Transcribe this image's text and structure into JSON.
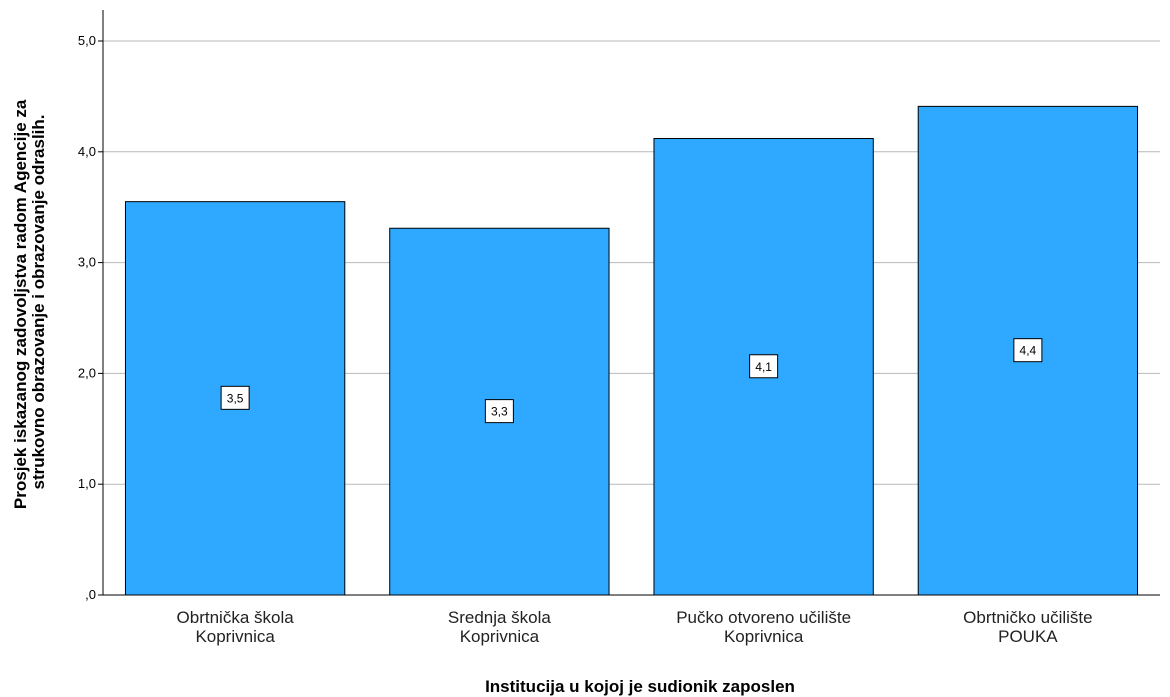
{
  "chart_data": {
    "type": "bar",
    "categories": [
      [
        "Obrtnička škola",
        "Koprivnica"
      ],
      [
        "Srednja škola",
        "Koprivnica"
      ],
      [
        "Pučko otvoreno učilište",
        "Koprivnica"
      ],
      [
        "Obrtničko učilište",
        "POUKA"
      ]
    ],
    "values": [
      3.55,
      3.31,
      4.12,
      4.41
    ],
    "data_labels": [
      "3,5",
      "3,3",
      "4,1",
      "4,4"
    ],
    "xlabel": "Institucija u kojoj je sudionik zaposlen",
    "ylabel": [
      "Prosjek iskazanog zadovoljstva radom Agencije za",
      "strukovno obrazovanje i obrazovanje odraslih."
    ],
    "ylim": [
      0,
      5
    ],
    "yticks": [
      ",0",
      "1,0",
      "2,0",
      "3,0",
      "4,0",
      "5,0"
    ],
    "grid": true,
    "bar_color": "#2fa9ff"
  }
}
